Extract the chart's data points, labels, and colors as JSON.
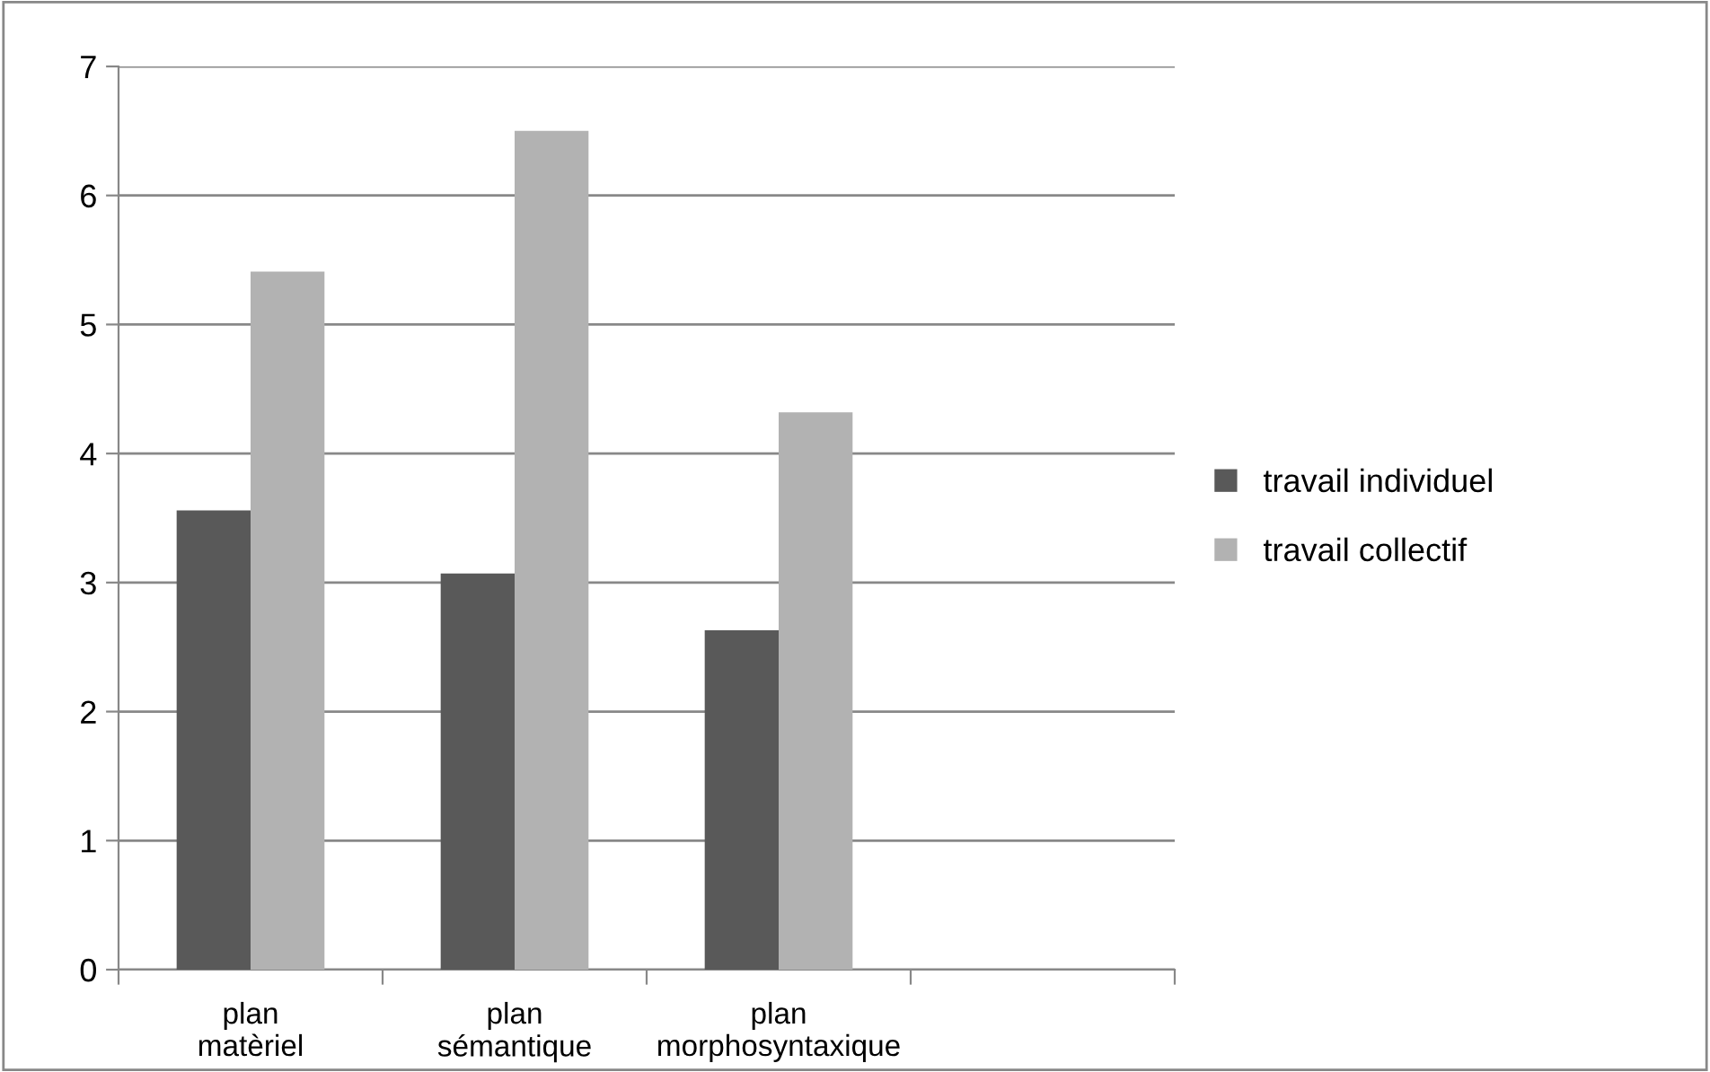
{
  "chart_data": {
    "type": "bar",
    "categories": [
      "plan matèriel",
      "plan sémantique",
      "plan morphosyntaxique",
      null
    ],
    "series": [
      {
        "name": "travail individuel",
        "color": "#595959",
        "values": [
          3.56,
          3.07,
          2.63,
          null
        ]
      },
      {
        "name": "travail collectif",
        "color": "#b2b2b2",
        "values": [
          5.41,
          6.5,
          4.32,
          null
        ]
      }
    ],
    "ylim": [
      0,
      7
    ],
    "yticks": [
      0,
      1,
      2,
      3,
      4,
      5,
      6,
      7
    ],
    "grid": "y",
    "legend": "right"
  }
}
